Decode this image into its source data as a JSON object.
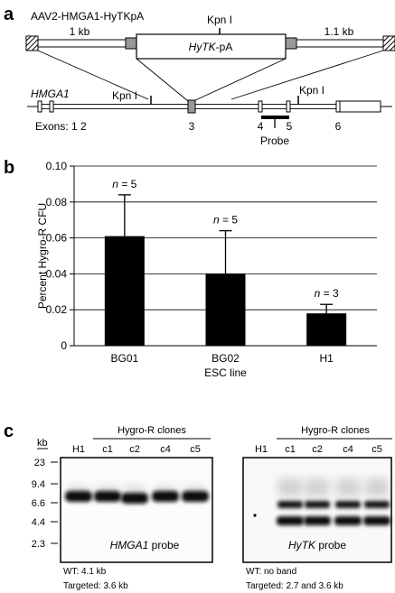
{
  "panel_a": {
    "label": "a",
    "construct_name": "AAV2-HMGA1-HyTKpA",
    "left_arm": "1 kb",
    "right_arm": "1.1 kb",
    "kpn_top": "Kpn I",
    "cassette": "HyTK",
    "cassette_suffix": "-pA",
    "gene": "HMGA1",
    "kpn_left": "Kpn I",
    "kpn_right": "Kpn I",
    "exons_label": "Exons: 1 2",
    "exon3": "3",
    "exon4": "4",
    "exon5": "5",
    "exon6": "6",
    "probe": "Probe"
  },
  "panel_b": {
    "label": "b",
    "chart_data": {
      "type": "bar",
      "categories": [
        "BG01",
        "BG02",
        "H1"
      ],
      "values": [
        0.061,
        0.04,
        0.018
      ],
      "errors": [
        0.023,
        0.024,
        0.005
      ],
      "annotations": [
        "n = 5",
        "n = 5",
        "n = 3"
      ],
      "annotation_prefix": "n",
      "annotation_values": [
        "= 5",
        "= 5",
        "= 3"
      ],
      "xlabel": "ESC line",
      "ylabel": "Percent Hygro-R CFU",
      "ylim": [
        0,
        0.1
      ],
      "yticks": [
        "0",
        "0.02",
        "0.04",
        "0.06",
        "0.08",
        "0.10"
      ],
      "ytick_values": [
        0,
        0.02,
        0.04,
        0.06,
        0.08,
        0.1
      ],
      "grid": true,
      "bar_color": "#000000"
    }
  },
  "panel_c": {
    "label": "c",
    "kb_label": "kb",
    "markers": [
      "23",
      "9.4",
      "6.6",
      "4.4",
      "2.3"
    ],
    "left_blot": {
      "group_label": "Hygro-R clones",
      "lanes": [
        "H1",
        "c1",
        "c2",
        "c4",
        "c5"
      ],
      "probe_name": "HMGA1",
      "probe_suffix": " probe",
      "wt_note": "WT: 4.1 kb",
      "targeted_note": "Targeted: 3.6 kb"
    },
    "right_blot": {
      "group_label": "Hygro-R clones",
      "lanes": [
        "H1",
        "c1",
        "c2",
        "c4",
        "c5"
      ],
      "probe_name": "HyTK",
      "probe_suffix": " probe",
      "wt_note": "WT: no band",
      "targeted_note": "Targeted: 2.7 and 3.6 kb"
    }
  }
}
